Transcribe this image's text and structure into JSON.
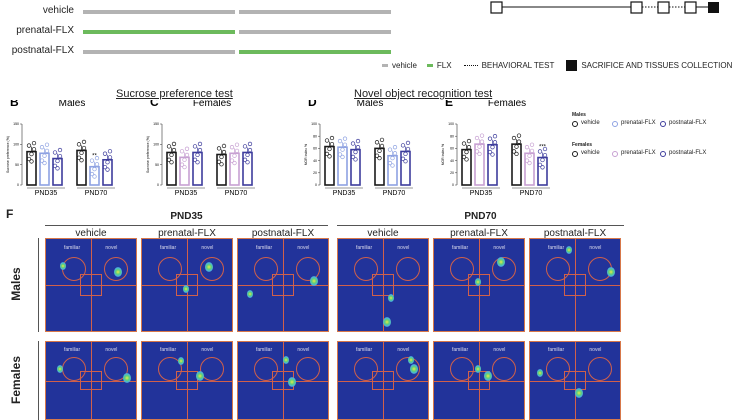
{
  "timeline": {
    "groups": [
      {
        "label": "vehicle",
        "segments": [
          "vehicle",
          "vehicle"
        ]
      },
      {
        "label": "prenatal-FLX",
        "segments": [
          "FLX",
          "vehicle"
        ]
      },
      {
        "label": "postnatal-FLX",
        "segments": [
          "vehicle",
          "FLX"
        ]
      }
    ],
    "colors": {
      "vehicle": "#b3b3b3",
      "FLX": "#6cba5c"
    },
    "legend": {
      "vehicle": "vehicle",
      "flx": "FLX",
      "behavioral": "BEHAVIORAL TEST",
      "sacrifice": "SACRIFICE AND TISSUES COLLECTION"
    }
  },
  "tests": {
    "sucrose": "Sucrose preference test",
    "nor": "Novel object recognition test"
  },
  "legend_groups": {
    "males": {
      "title": "Males",
      "items": [
        "vehicle",
        "prenatal-FLX",
        "postnatal-FLX"
      ]
    },
    "females": {
      "title": "Females",
      "items": [
        "vehicle",
        "prenatal-FLX",
        "postnatal-FLX"
      ]
    }
  },
  "colors": {
    "vehicle": "#1a1a1a",
    "male_prenatal": "#8ea2e2",
    "female_prenatal": "#c7a0d2",
    "postnatal": "#3d3c9c"
  },
  "chart_data": [
    {
      "type": "bar",
      "panel": "B",
      "title": "Males",
      "ylabel": "Sucrose preference (%)",
      "ylim": [
        0,
        150
      ],
      "yticks": [
        0,
        50,
        100,
        150
      ],
      "categories": [
        "PND35",
        "PND70"
      ],
      "series": [
        {
          "name": "vehicle",
          "values": [
            82,
            85
          ]
        },
        {
          "name": "prenatal-FLX",
          "values": [
            78,
            45
          ]
        },
        {
          "name": "postnatal-FLX",
          "values": [
            65,
            62
          ]
        }
      ],
      "annotations": [
        {
          "category": "PND70",
          "series": "prenatal-FLX",
          "text": "**"
        }
      ]
    },
    {
      "type": "bar",
      "panel": "C",
      "title": "Females",
      "ylabel": "Sucrose preference (%)",
      "ylim": [
        0,
        150
      ],
      "yticks": [
        0,
        50,
        100,
        150
      ],
      "categories": [
        "PND35",
        "PND70"
      ],
      "series": [
        {
          "name": "vehicle",
          "values": [
            80,
            75
          ]
        },
        {
          "name": "prenatal-FLX",
          "values": [
            68,
            78
          ]
        },
        {
          "name": "postnatal-FLX",
          "values": [
            80,
            80
          ]
        }
      ],
      "annotations": []
    },
    {
      "type": "bar",
      "panel": "D",
      "title": "Males",
      "ylabel": "NOR index %",
      "ylim": [
        0,
        100
      ],
      "yticks": [
        0,
        20,
        40,
        60,
        80,
        100
      ],
      "categories": [
        "PND35",
        "PND70"
      ],
      "series": [
        {
          "name": "vehicle",
          "values": [
            63,
            60
          ]
        },
        {
          "name": "prenatal-FLX",
          "values": [
            62,
            48
          ]
        },
        {
          "name": "postnatal-FLX",
          "values": [
            58,
            55
          ]
        }
      ],
      "annotations": []
    },
    {
      "type": "bar",
      "panel": "E",
      "title": "Females",
      "ylabel": "NOR index %",
      "ylim": [
        0,
        100
      ],
      "yticks": [
        0,
        20,
        40,
        60,
        80,
        100
      ],
      "categories": [
        "PND35",
        "PND70"
      ],
      "series": [
        {
          "name": "vehicle",
          "values": [
            58,
            67
          ]
        },
        {
          "name": "prenatal-FLX",
          "values": [
            67,
            52
          ]
        },
        {
          "name": "postnatal-FLX",
          "values": [
            66,
            45
          ]
        }
      ],
      "annotations": [
        {
          "category": "PND70",
          "series": "postnatal-FLX",
          "text": "***"
        }
      ]
    }
  ],
  "panel_f": {
    "letter": "F",
    "ages": [
      "PND35",
      "PND70"
    ],
    "columns": [
      "vehicle",
      "prenatal-FLX",
      "postnatal-FLX",
      "vehicle",
      "prenatal-FLX",
      "postnatal-FLX"
    ],
    "rows": [
      "Males",
      "Females"
    ],
    "object_labels": {
      "familiar": "familiar",
      "novel": "novel"
    }
  }
}
